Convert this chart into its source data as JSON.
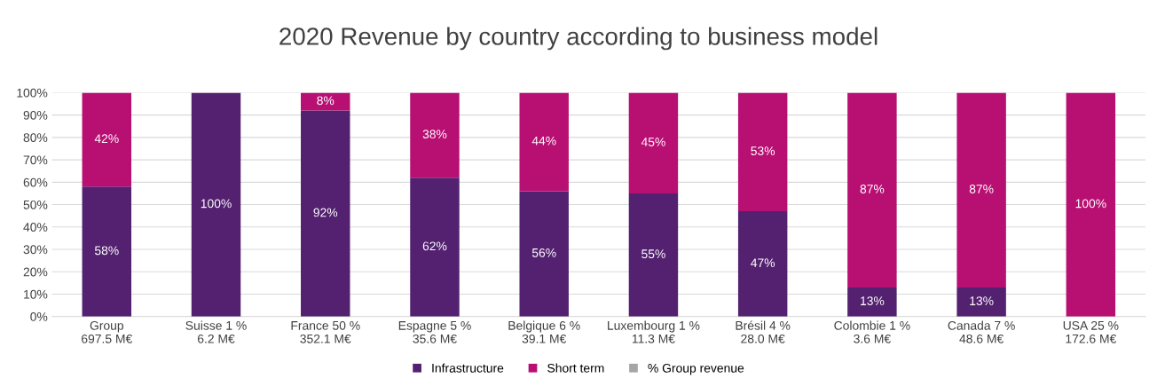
{
  "chart_data": {
    "type": "bar",
    "stacked": true,
    "title": "2020 Revenue by country according to business model",
    "categories": [
      "Group\n697.5 M€",
      "Suisse 1 %\n6.2 M€",
      "France 50 %\n352.1 M€",
      "Espagne 5 %\n35.6 M€",
      "Belgique 6 %\n39.1 M€",
      "Luxembourg 1 %\n11.3 M€",
      "Brésil 4 %\n28.0 M€",
      "Colombie 1 %\n3.6 M€",
      "Canada 7 %\n48.6 M€",
      "USA 25 %\n172.6 M€"
    ],
    "series": [
      {
        "name": "Infrastructure",
        "color": "#532170",
        "values": [
          58,
          100,
          92,
          62,
          56,
          55,
          47,
          13,
          13,
          0
        ],
        "value_labels": [
          "58%",
          "100%",
          "92%",
          "62%",
          "56%",
          "55%",
          "47%",
          "13%",
          "13%",
          null
        ]
      },
      {
        "name": "Short term",
        "color": "#b80f73",
        "values": [
          42,
          0,
          8,
          38,
          44,
          45,
          53,
          87,
          87,
          100
        ],
        "value_labels": [
          "42%",
          null,
          "8%",
          "38%",
          "44%",
          "45%",
          "53%",
          "87%",
          "87%",
          "100%"
        ]
      },
      {
        "name": "% Group revenue",
        "color": "#a5a5a5",
        "values": [
          null,
          null,
          null,
          null,
          null,
          null,
          null,
          null,
          null,
          null
        ]
      }
    ],
    "ylim": [
      0,
      100
    ],
    "yticks": [
      {
        "value": 0,
        "label": "0%"
      },
      {
        "value": 10,
        "label": "10%"
      },
      {
        "value": 20,
        "label": "20%"
      },
      {
        "value": 30,
        "label": "30%"
      },
      {
        "value": 40,
        "label": "40%"
      },
      {
        "value": 50,
        "label": "50%"
      },
      {
        "value": 60,
        "label": "60%"
      },
      {
        "value": 70,
        "label": "70%"
      },
      {
        "value": 80,
        "label": "80%"
      },
      {
        "value": 90,
        "label": "90%"
      },
      {
        "value": 100,
        "label": "100%"
      }
    ],
    "grid": "y",
    "legend": "bottom"
  }
}
